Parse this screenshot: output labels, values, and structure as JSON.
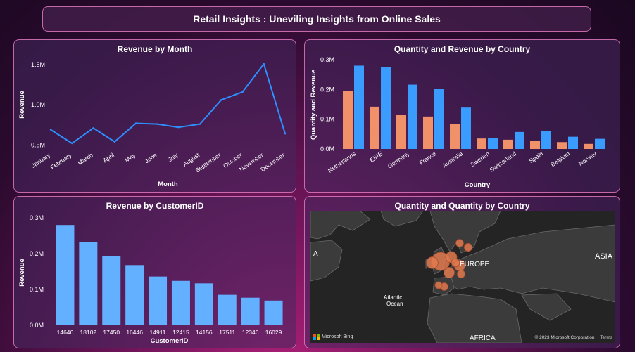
{
  "page": {
    "title": "Retail Insights : Uneviling Insights from Online Sales"
  },
  "chart_data": [
    {
      "id": "revenue-by-month",
      "type": "line",
      "title": "Revenue by Month",
      "xlabel": "Month",
      "ylabel": "Revenue",
      "categories": [
        "January",
        "February",
        "March",
        "April",
        "May",
        "June",
        "July",
        "August",
        "September",
        "October",
        "November",
        "December"
      ],
      "values": [
        0.69,
        0.52,
        0.71,
        0.54,
        0.77,
        0.76,
        0.72,
        0.76,
        1.06,
        1.16,
        1.51,
        0.64
      ],
      "yticks": [
        {
          "v": 0.5,
          "label": "0.5M"
        },
        {
          "v": 1.0,
          "label": "1.0M"
        },
        {
          "v": 1.5,
          "label": "1.5M"
        }
      ],
      "ylim": [
        0.45,
        1.58
      ],
      "color": "#2e8fff"
    },
    {
      "id": "qty-rev-by-country",
      "type": "bar",
      "title": "Quantity and Revenue by Country",
      "xlabel": "Country",
      "ylabel": "Quantity and Revenue",
      "categories": [
        "Netherlands",
        "EIRE",
        "Germany",
        "France",
        "Australia",
        "Sweden",
        "Switzerland",
        "Spain",
        "Belgium",
        "Norway"
      ],
      "series": [
        {
          "values": [
            0.195,
            0.142,
            0.114,
            0.109,
            0.084,
            0.035,
            0.031,
            0.028,
            0.023,
            0.017
          ],
          "color": "#f0916a"
        },
        {
          "values": [
            0.28,
            0.276,
            0.216,
            0.202,
            0.139,
            0.036,
            0.057,
            0.061,
            0.041,
            0.034
          ],
          "color": "#3a9cff"
        }
      ],
      "yticks": [
        {
          "v": 0,
          "label": "0.0M"
        },
        {
          "v": 0.1,
          "label": "0.1M"
        },
        {
          "v": 0.2,
          "label": "0.2M"
        },
        {
          "v": 0.3,
          "label": "0.3M"
        }
      ],
      "ylim": [
        0,
        0.3
      ]
    },
    {
      "id": "revenue-by-customer",
      "type": "bar",
      "title": "Revenue by CustomerID",
      "xlabel": "CustomerID",
      "ylabel": "Revenue",
      "categories": [
        "14646",
        "18102",
        "17450",
        "16446",
        "14911",
        "12415",
        "14156",
        "17511",
        "12346",
        "16029"
      ],
      "values": [
        0.28,
        0.232,
        0.194,
        0.168,
        0.136,
        0.124,
        0.117,
        0.085,
        0.077,
        0.069
      ],
      "yticks": [
        {
          "v": 0,
          "label": "0.0M"
        },
        {
          "v": 0.1,
          "label": "0.1M"
        },
        {
          "v": 0.2,
          "label": "0.2M"
        },
        {
          "v": 0.3,
          "label": "0.3M"
        }
      ],
      "ylim": [
        0,
        0.3
      ],
      "color": "#62b0ff"
    }
  ],
  "map": {
    "title": "Quantity and Quantity by Country",
    "labels": {
      "asia": "ASIA",
      "europe": "EUROPE",
      "africa": "AFRICA",
      "ocean_line1": "Atlantic",
      "ocean_line2": "Ocean",
      "north_america_fragment": "A"
    },
    "bing_label": "Microsoft Bing",
    "copyright": "© 2023 Microsoft Corporation",
    "terms": "Terms",
    "bubble_color": "#e07a4f",
    "bubbles": [
      {
        "country": "United Kingdom",
        "qty": 1.0
      },
      {
        "country": "Netherlands",
        "qty": 0.45
      },
      {
        "country": "Germany",
        "qty": 0.42
      },
      {
        "country": "France",
        "qty": 0.4
      },
      {
        "country": "EIRE",
        "qty": 0.48
      },
      {
        "country": "Belgium",
        "qty": 0.2
      },
      {
        "country": "Switzerland",
        "qty": 0.18
      },
      {
        "country": "Spain",
        "qty": 0.17
      },
      {
        "country": "Portugal",
        "qty": 0.12
      },
      {
        "country": "Norway",
        "qty": 0.16
      },
      {
        "country": "Sweden",
        "qty": 0.19
      }
    ]
  }
}
